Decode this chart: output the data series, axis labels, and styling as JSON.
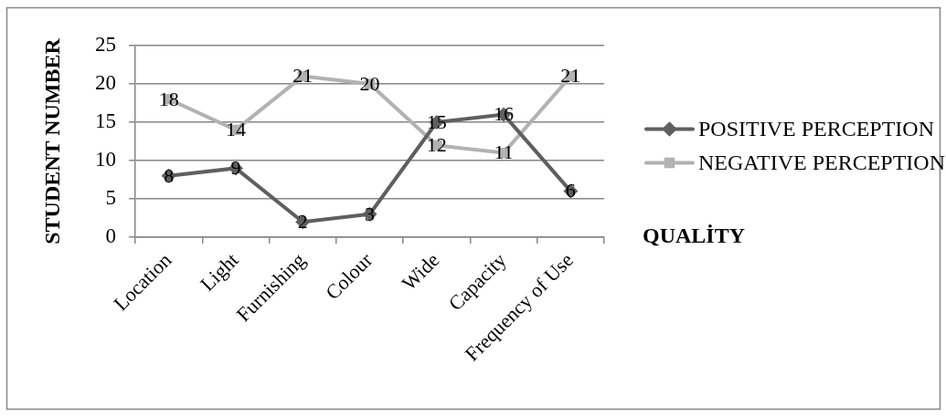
{
  "chart_data": {
    "type": "line",
    "xlabel": "QUALİTY",
    "ylabel": "STUDENT NUMBER",
    "categories": [
      "Location",
      "Light",
      "Furnishing",
      "Colour",
      "Wide",
      "Capacity",
      "Frequency of Use"
    ],
    "series": [
      {
        "name": "POSITIVE PERCEPTION",
        "color": "#5f5f5f",
        "marker": "diamond",
        "values": [
          8,
          9,
          2,
          3,
          15,
          16,
          6
        ]
      },
      {
        "name": "NEGATIVE PERCEPTION",
        "color": "#b2b2b2",
        "marker": "square",
        "values": [
          18,
          14,
          21,
          20,
          12,
          11,
          21
        ]
      }
    ],
    "ylim": [
      0,
      25
    ],
    "yticks": [
      0,
      5,
      10,
      15,
      20,
      25
    ],
    "grid": "y",
    "legend": "right",
    "data_labels": true,
    "line_style": "solid"
  }
}
